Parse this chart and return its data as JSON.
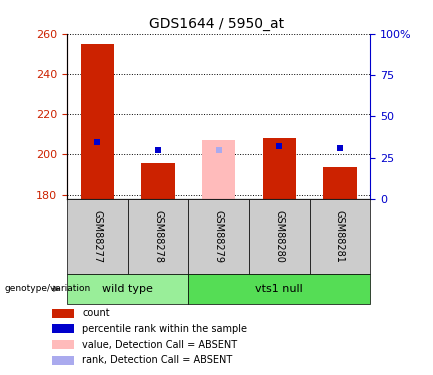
{
  "title": "GDS1644 / 5950_at",
  "samples": [
    "GSM88277",
    "GSM88278",
    "GSM88279",
    "GSM88280",
    "GSM88281"
  ],
  "count_values": [
    255,
    196,
    null,
    208,
    194
  ],
  "count_absent_values": [
    null,
    null,
    207,
    null,
    null
  ],
  "rank_values": [
    206,
    202,
    null,
    204,
    203
  ],
  "rank_absent_values": [
    null,
    null,
    202,
    null,
    null
  ],
  "ylim_left": [
    178,
    260
  ],
  "ylim_right": [
    0,
    100
  ],
  "yticks_left": [
    180,
    200,
    220,
    240,
    260
  ],
  "yticks_right": [
    0,
    25,
    50,
    75,
    100
  ],
  "ytick_labels_right": [
    "0",
    "25",
    "50",
    "75",
    "100%"
  ],
  "bar_color_present": "#cc2200",
  "bar_color_absent": "#ffbbbb",
  "rank_color_present": "#0000cc",
  "rank_color_absent": "#aaaaee",
  "group_colors": {
    "wild type": "#99ee99",
    "vts1 null": "#55dd55"
  },
  "left_axis_color": "#cc2200",
  "right_axis_color": "#0000cc",
  "bar_width": 0.55,
  "legend_items": [
    {
      "label": "count",
      "color": "#cc2200"
    },
    {
      "label": "percentile rank within the sample",
      "color": "#0000cc"
    },
    {
      "label": "value, Detection Call = ABSENT",
      "color": "#ffbbbb"
    },
    {
      "label": "rank, Detection Call = ABSENT",
      "color": "#aaaaee"
    }
  ],
  "group_data": [
    {
      "label": "wild type",
      "indices": [
        0,
        1
      ],
      "color": "#99ee99"
    },
    {
      "label": "vts1 null",
      "indices": [
        2,
        3,
        4
      ],
      "color": "#55dd55"
    }
  ]
}
